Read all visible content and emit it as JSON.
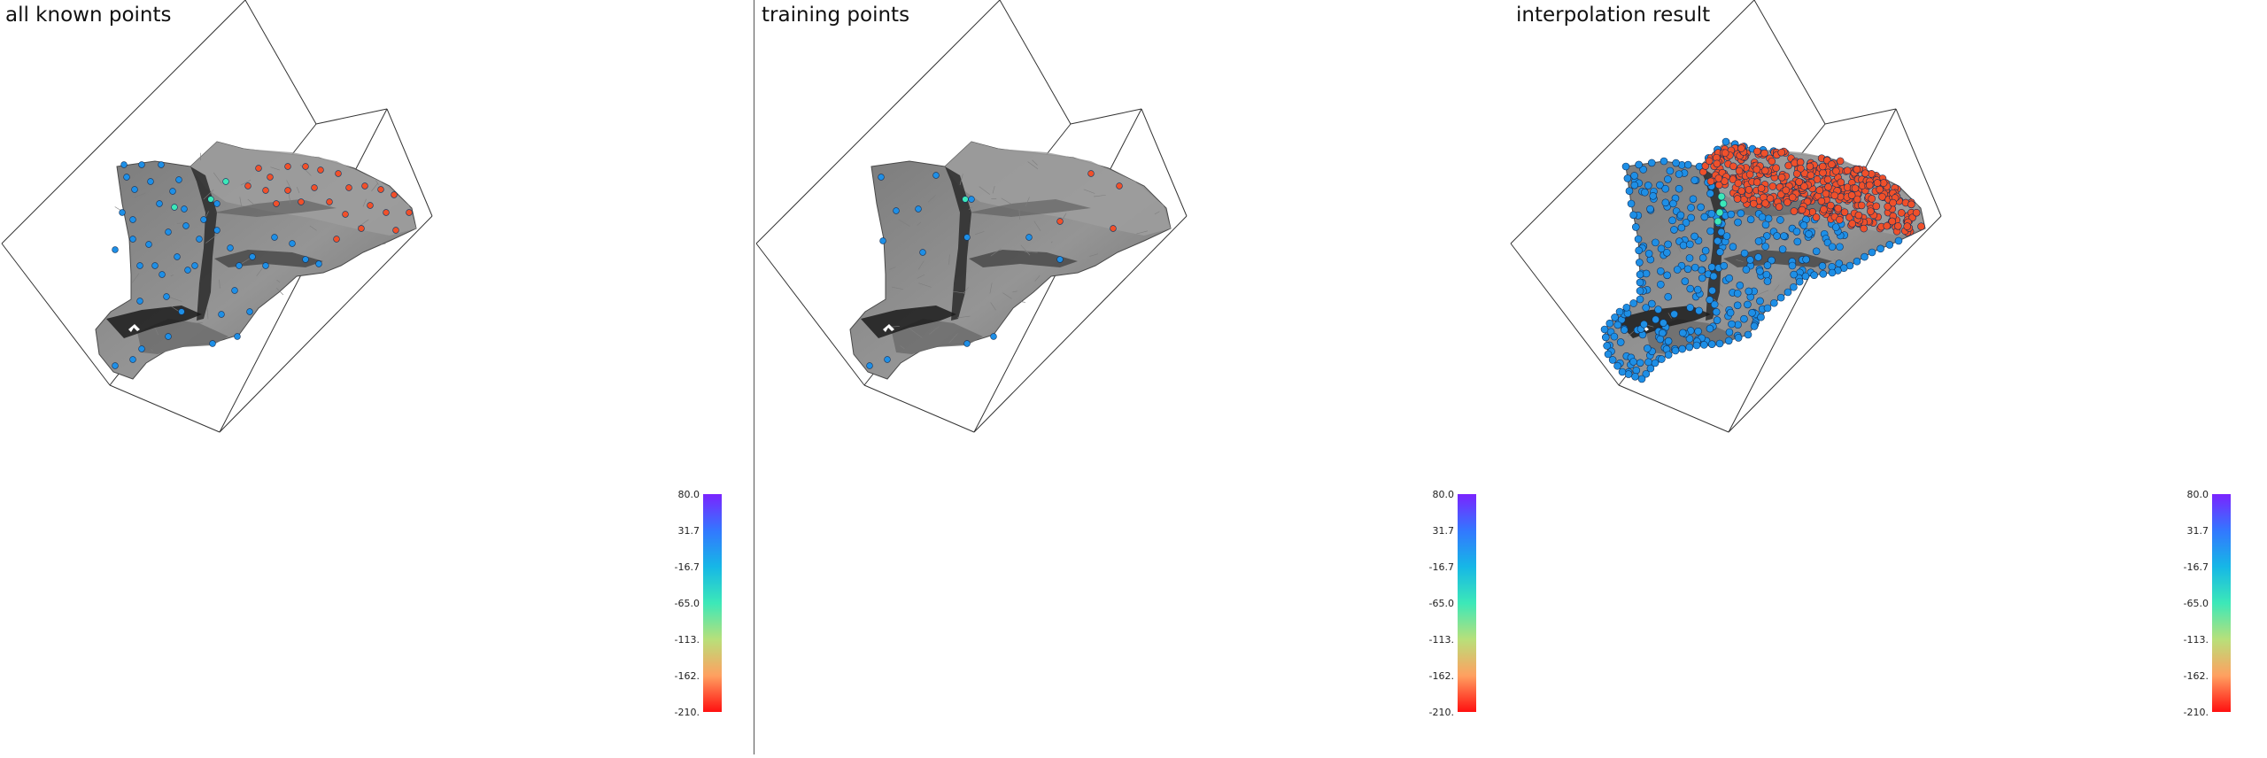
{
  "panels": [
    {
      "title": "all known points",
      "dataset": "all"
    },
    {
      "title": "training points",
      "dataset": "train"
    },
    {
      "title": "interpolation result",
      "dataset": "interp"
    }
  ],
  "colorbar": {
    "labels": [
      "80.0",
      "31.7",
      "-16.7",
      "-65.0",
      "-113.",
      "-162.",
      "-210."
    ],
    "colors": [
      "#7a24ff",
      "#3377ff",
      "#16b7e6",
      "#3ce8b8",
      "#b8e07a",
      "#ffa060",
      "#ff1010"
    ]
  },
  "colors": {
    "surface": "#8a8a8a",
    "surface_dark": "#2a2a2a",
    "point_high": "#1e8fe6",
    "point_low": "#f0502a",
    "point_mid": "#3ce8b8"
  }
}
